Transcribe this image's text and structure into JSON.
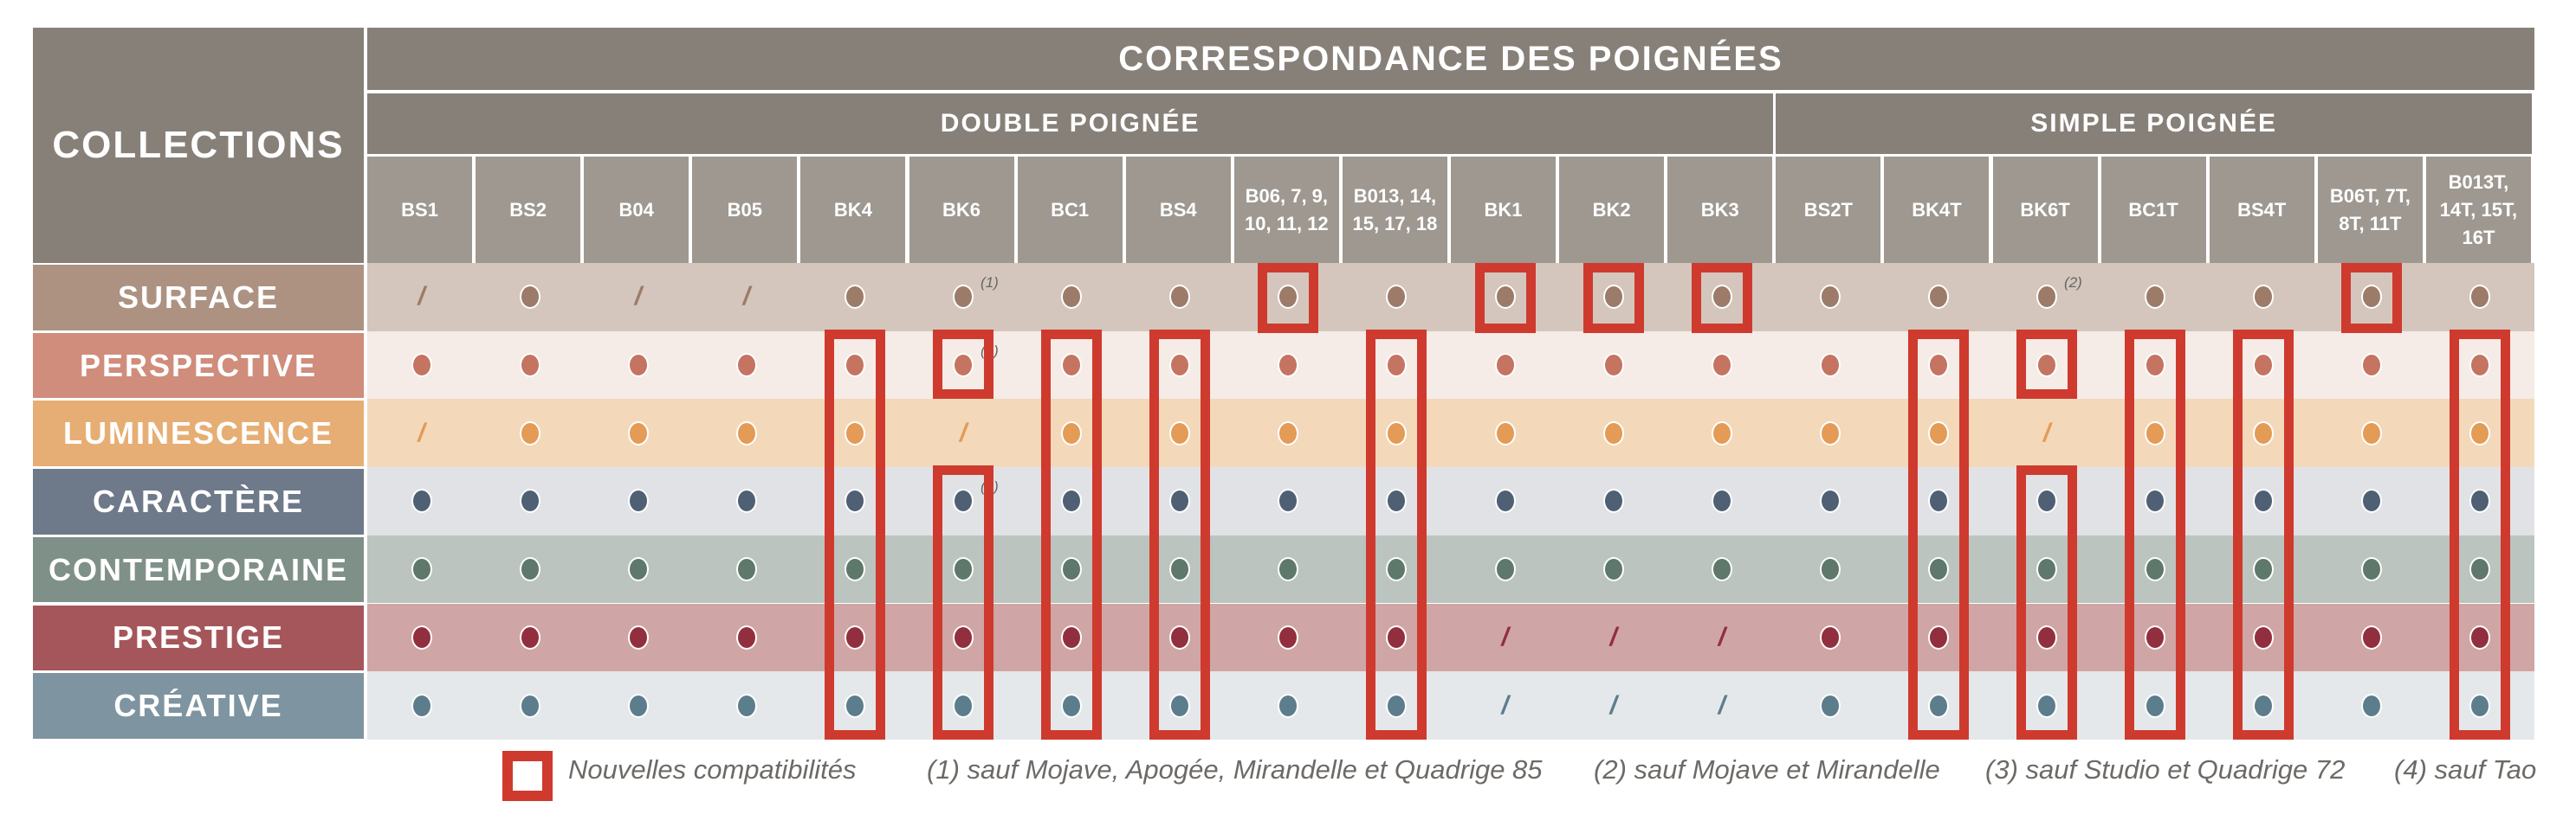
{
  "header": {
    "collections_label": "COLLECTIONS",
    "title": "CORRESPONDANCE DES POIGNÉES",
    "groups": [
      {
        "label": "DOUBLE POIGNÉE",
        "span": 13
      },
      {
        "label": "SIMPLE POIGNÉE",
        "span": 7
      }
    ]
  },
  "columns": [
    "BS1",
    "BS2",
    "B04",
    "B05",
    "BK4",
    "BK6",
    "BC1",
    "BS4",
    "B06, 7, 9, 10, 11, 12",
    "B013, 14, 15, 17, 18",
    "BK1",
    "BK2",
    "BK3",
    "BS2T",
    "BK4T",
    "BK6T",
    "BC1T",
    "BS4T",
    "B06T, 7T, 8T, 11T",
    "B013T, 14T, 15T, 16T"
  ],
  "rows": [
    {
      "name": "SURFACE",
      "label_color": "#ad9282",
      "bg_color": "#d4c6bc",
      "dot_color": "#9c7b68",
      "cells": [
        "/",
        "o",
        "/",
        "/",
        "o",
        "o(1)",
        "o",
        "o",
        "o",
        "o",
        "o",
        "o",
        "o",
        "o",
        "o",
        "o(2)",
        "o",
        "o",
        "o",
        "o"
      ]
    },
    {
      "name": "PERSPECTIVE",
      "label_color": "#d08d7b",
      "bg_color": "#f5ebe7",
      "dot_color": "#c57462",
      "cells": [
        "o",
        "o",
        "o",
        "o",
        "o",
        "o(3)",
        "o",
        "o",
        "o",
        "o",
        "o",
        "o",
        "o",
        "o",
        "o",
        "o",
        "o",
        "o",
        "o",
        "o"
      ]
    },
    {
      "name": "LUMINESCENCE",
      "label_color": "#e6ae74",
      "bg_color": "#f3d8ba",
      "dot_color": "#e39b56",
      "cells": [
        "/",
        "o",
        "o",
        "o",
        "o",
        "/",
        "o",
        "o",
        "o",
        "o",
        "o",
        "o",
        "o",
        "o",
        "o",
        "/",
        "o",
        "o",
        "o",
        "o"
      ]
    },
    {
      "name": "CARACTÈRE",
      "label_color": "#6e7a8a",
      "bg_color": "#e1e2e6",
      "dot_color": "#4f6074",
      "cells": [
        "o",
        "o",
        "o",
        "o",
        "o",
        "o(4)",
        "o",
        "o",
        "o",
        "o",
        "o",
        "o",
        "o",
        "o",
        "o",
        "o",
        "o",
        "o",
        "o",
        "o"
      ]
    },
    {
      "name": "CONTEMPORAINE",
      "label_color": "#7f9088",
      "bg_color": "#bbc4bf",
      "dot_color": "#5e786c",
      "cells": [
        "o",
        "o",
        "o",
        "o",
        "o",
        "o",
        "o",
        "o",
        "o",
        "o",
        "o",
        "o",
        "o",
        "o",
        "o",
        "o",
        "o",
        "o",
        "o",
        "o"
      ]
    },
    {
      "name": "PRESTIGE",
      "label_color": "#a5565b",
      "bg_color": "#cfa6a5",
      "dot_color": "#922f3e",
      "cells": [
        "o",
        "o",
        "o",
        "o",
        "o",
        "o",
        "o",
        "o",
        "o",
        "o",
        "/",
        "/",
        "/",
        "o",
        "o",
        "o",
        "o",
        "o",
        "o",
        "o"
      ]
    },
    {
      "name": "CRÉATIVE",
      "label_color": "#7e94a0",
      "bg_color": "#e5e8eb",
      "dot_color": "#5c7d8c",
      "cells": [
        "o",
        "o",
        "o",
        "o",
        "o",
        "o",
        "o",
        "o",
        "o",
        "o",
        "/",
        "/",
        "/",
        "o",
        "o",
        "o",
        "o",
        "o",
        "o",
        "o"
      ]
    }
  ],
  "highlights": [
    {
      "col": 8,
      "row_start": 0,
      "row_end": 0
    },
    {
      "col": 10,
      "row_start": 0,
      "row_end": 0
    },
    {
      "col": 11,
      "row_start": 0,
      "row_end": 0
    },
    {
      "col": 12,
      "row_start": 0,
      "row_end": 0
    },
    {
      "col": 18,
      "row_start": 0,
      "row_end": 0
    },
    {
      "col": 4,
      "row_start": 1,
      "row_end": 6
    },
    {
      "col": 5,
      "row_start": 1,
      "row_end": 1
    },
    {
      "col": 5,
      "row_start": 3,
      "row_end": 6
    },
    {
      "col": 6,
      "row_start": 1,
      "row_end": 6
    },
    {
      "col": 7,
      "row_start": 1,
      "row_end": 6
    },
    {
      "col": 9,
      "row_start": 1,
      "row_end": 6
    },
    {
      "col": 14,
      "row_start": 1,
      "row_end": 6
    },
    {
      "col": 15,
      "row_start": 1,
      "row_end": 1
    },
    {
      "col": 15,
      "row_start": 3,
      "row_end": 6
    },
    {
      "col": 16,
      "row_start": 1,
      "row_end": 6
    },
    {
      "col": 17,
      "row_start": 1,
      "row_end": 6
    },
    {
      "col": 19,
      "row_start": 1,
      "row_end": 6
    }
  ],
  "colors": {
    "header_dark": "#878079",
    "header_light": "#9e9891",
    "highlight": "#cf3a2e",
    "footnote_text": "#6d6a66"
  },
  "legend": {
    "new_label": "Nouvelles compatibilités",
    "notes": [
      "(1) sauf Mojave, Apogée, Mirandelle et Quadrige 85",
      "(2) sauf Mojave et Mirandelle",
      "(3) sauf Studio et Quadrige 72",
      "(4) sauf Tao"
    ]
  }
}
